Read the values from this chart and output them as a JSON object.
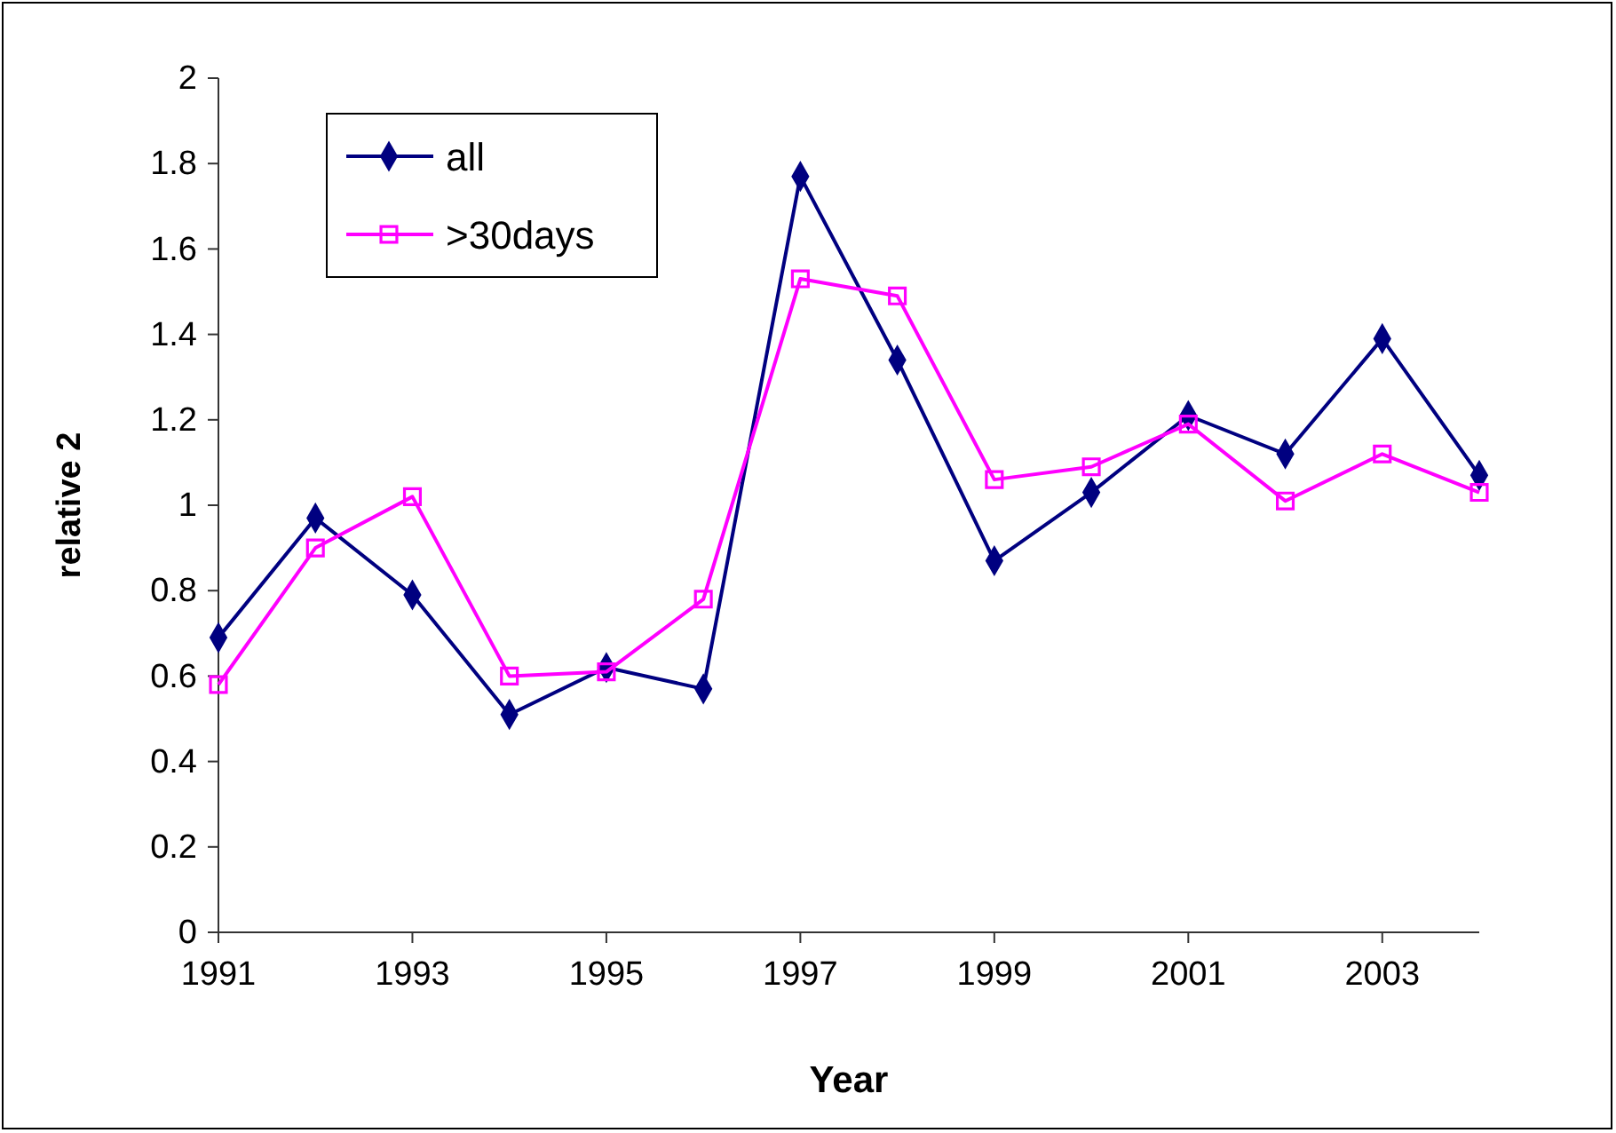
{
  "chart_data": {
    "type": "line",
    "xlabel": "Year",
    "ylabel": "relative 2",
    "x": [
      1991,
      1992,
      1993,
      1994,
      1995,
      1996,
      1997,
      1998,
      1999,
      2000,
      2001,
      2002,
      2003,
      2004
    ],
    "xlim": [
      1991,
      2004
    ],
    "xticks": [
      1991,
      1993,
      1995,
      1997,
      1999,
      2001,
      2003
    ],
    "ylim": [
      0,
      2
    ],
    "yticks": [
      0,
      0.2,
      0.4,
      0.6,
      0.8,
      1,
      1.2,
      1.4,
      1.6,
      1.8,
      2
    ],
    "grid": false,
    "legend": "top left",
    "line_style": "solid",
    "series": [
      {
        "name": "all",
        "color": "#000080",
        "marker": "diamond",
        "values": [
          0.69,
          0.97,
          0.79,
          0.51,
          0.62,
          0.57,
          1.77,
          1.34,
          0.87,
          1.03,
          1.21,
          1.12,
          1.39,
          1.07
        ]
      },
      {
        "name": ">30days",
        "color": "#ff00ff",
        "marker": "square",
        "values": [
          0.58,
          0.9,
          1.02,
          0.6,
          0.61,
          0.78,
          1.53,
          1.49,
          1.06,
          1.09,
          1.19,
          1.01,
          1.12,
          1.03
        ]
      }
    ]
  }
}
